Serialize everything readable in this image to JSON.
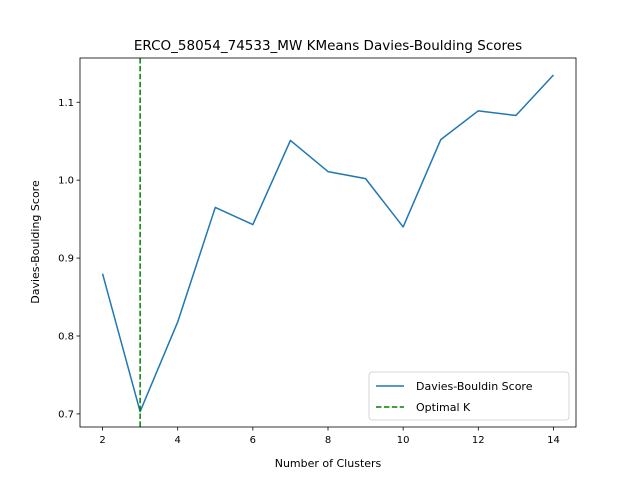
{
  "chart_data": {
    "type": "line",
    "title": "ERCO_58054_74533_MW KMeans Davies-Boulding Scores",
    "xlabel": "Number of Clusters",
    "ylabel": "Davies-Boulding Score",
    "x": [
      2,
      3,
      4,
      5,
      6,
      7,
      8,
      9,
      10,
      11,
      12,
      13,
      14
    ],
    "series": [
      {
        "name": "Davies-Bouldin Score",
        "color": "#1f77b4",
        "values": [
          0.88,
          0.703,
          0.818,
          0.965,
          0.943,
          1.051,
          1.011,
          1.002,
          0.94,
          1.052,
          1.089,
          1.083,
          1.135
        ]
      }
    ],
    "vline": {
      "name": "Optimal K",
      "x": 3,
      "color": "#008000",
      "style": "dashed"
    },
    "xlim": [
      1.4,
      14.6
    ],
    "ylim": [
      0.6832,
      1.1568
    ],
    "xticks": [
      2,
      4,
      6,
      8,
      10,
      12,
      14
    ],
    "yticks": [
      0.7,
      0.8,
      0.9,
      1.0,
      1.1
    ],
    "ytick_labels": [
      "0.7",
      "0.8",
      "0.9",
      "1.0",
      "1.1"
    ],
    "grid": false,
    "legend_position": "lower-right"
  }
}
